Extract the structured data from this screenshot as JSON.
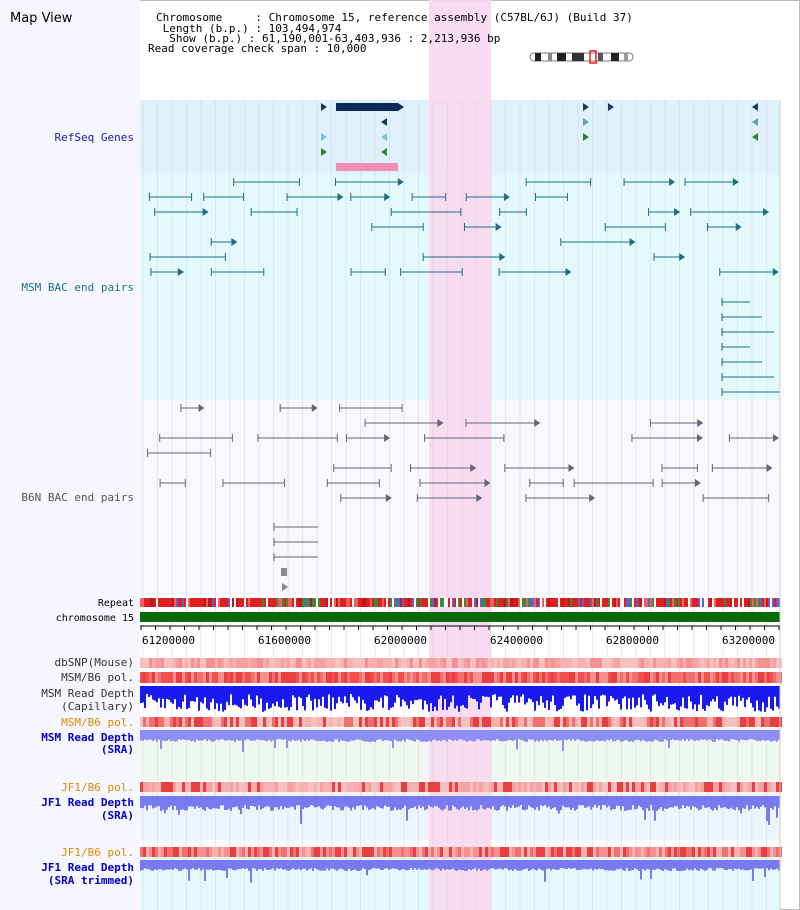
{
  "header": {
    "title": "Map View",
    "info_lines": [
      "Chromosome     : Chromosome 15, reference assembly (C57BL/6J) (Build 37)",
      " Length (b.p.) : 103,494,974",
      "  Show (b.p.) : 61,190,001-63,403,936 : 2,213,936 bp",
      "Read coverage check span : 10,000"
    ]
  },
  "tracks": {
    "refseq": "RefSeq Genes",
    "msm_bac": "MSM BAC end pairs",
    "b6n_bac": "B6N BAC end pairs",
    "repeat": "Repeat",
    "chromosome": "chromosome 15",
    "dbsnp": "dbSNP(Mouse)",
    "msm_b6_pol": "MSM/B6 pol.",
    "msm_depth_cap": [
      "MSM Read Depth",
      "(Capillary)"
    ],
    "msm_b6_pol_2": "MSM/B6 pol.",
    "msm_depth_sra": [
      "MSM Read Depth",
      "(SRA)"
    ],
    "jf1_b6_pol": "JF1/B6 pol.",
    "jf1_depth_sra": [
      "JF1 Read Depth",
      "(SRA)"
    ],
    "jf1_b6_pol_2": "JF1/B6 pol.",
    "jf1_depth_trim": [
      "JF1 Read Depth",
      "(SRA trimmed)"
    ]
  },
  "axis": {
    "ticks": [
      "61200000",
      "61600000",
      "62000000",
      "62400000",
      "62800000",
      "63200000"
    ]
  },
  "colors": {
    "refseq_bg": "#dff1fb",
    "msm_bg": "#e4fafa",
    "b6n_bg": "#f8f8fc",
    "highlight": "#f8d8f0",
    "refseq_label": "#1a1aa0",
    "msm_label": "#1e6e88",
    "b6n_label": "#555555",
    "pol_orange": "#e08a00",
    "depth_blue": "#0000cc",
    "chrom_green": "#0a6a0a"
  }
}
